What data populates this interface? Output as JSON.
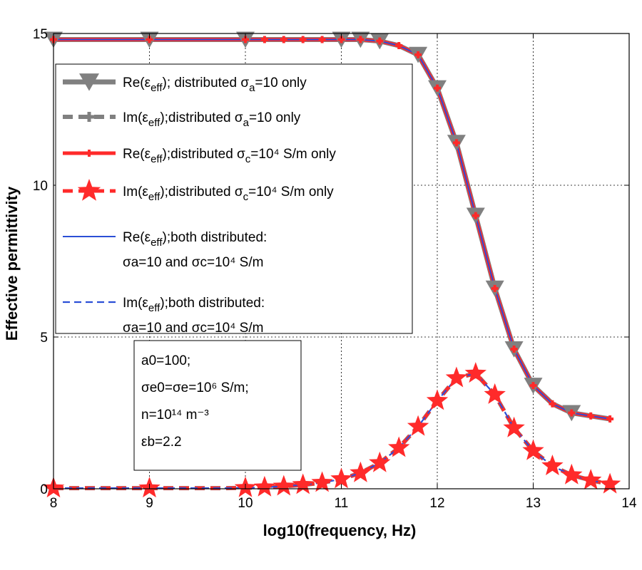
{
  "chart_data": {
    "type": "line",
    "title": "",
    "xlabel": "log10(frequency, Hz)",
    "ylabel": "Effective permittivity",
    "xlim": [
      8,
      14
    ],
    "ylim": [
      0,
      15
    ],
    "xticks": [
      "8",
      "9",
      "10",
      "11",
      "12",
      "13",
      "14"
    ],
    "yticks": [
      "0",
      "5",
      "10",
      "15"
    ],
    "grid": true,
    "legend_position": "upper-left",
    "colors": {
      "gray_series": "#808080",
      "red_series": "#ff2a2a",
      "blue_series": "#2b4fd6",
      "grid": "#000000"
    },
    "x": [
      8.0,
      8.2,
      8.4,
      8.6,
      8.8,
      9.0,
      9.2,
      9.4,
      9.6,
      9.8,
      10.0,
      10.2,
      10.4,
      10.6,
      10.8,
      11.0,
      11.2,
      11.4,
      11.6,
      11.8,
      12.0,
      12.2,
      12.4,
      12.6,
      12.8,
      13.0,
      13.2,
      13.4,
      13.6,
      13.8
    ],
    "series": [
      {
        "name": "Re(εeff); distributed σa=10 only",
        "style": "gray-solid-triangle",
        "values": [
          14.8,
          14.8,
          14.8,
          14.8,
          14.8,
          14.8,
          14.8,
          14.8,
          14.8,
          14.8,
          14.8,
          14.8,
          14.8,
          14.8,
          14.8,
          14.8,
          14.8,
          14.75,
          14.6,
          14.3,
          13.2,
          11.4,
          9.0,
          6.6,
          4.6,
          3.4,
          2.8,
          2.5,
          2.4,
          2.3
        ]
      },
      {
        "name": "Im(εeff);distributed σa=10 only",
        "style": "gray-dashed-plus",
        "values": [
          0.02,
          0.02,
          0.02,
          0.02,
          0.02,
          0.02,
          0.02,
          0.02,
          0.02,
          0.02,
          0.03,
          0.05,
          0.08,
          0.13,
          0.2,
          0.32,
          0.52,
          0.85,
          1.35,
          2.05,
          2.9,
          3.65,
          3.8,
          3.1,
          2.0,
          1.25,
          0.75,
          0.45,
          0.28,
          0.15
        ]
      },
      {
        "name": "Re(εeff);distributed σc=10^4 S/m only",
        "style": "red-solid-plus",
        "values": [
          14.8,
          14.8,
          14.8,
          14.8,
          14.8,
          14.8,
          14.8,
          14.8,
          14.8,
          14.8,
          14.8,
          14.8,
          14.8,
          14.8,
          14.8,
          14.8,
          14.8,
          14.75,
          14.6,
          14.3,
          13.2,
          11.4,
          9.0,
          6.6,
          4.6,
          3.4,
          2.8,
          2.5,
          2.4,
          2.3
        ]
      },
      {
        "name": "Im(εeff);distributed σc=10^4 S/m only",
        "style": "red-dashed-star",
        "values": [
          0.02,
          0.02,
          0.02,
          0.02,
          0.02,
          0.02,
          0.02,
          0.02,
          0.02,
          0.02,
          0.03,
          0.05,
          0.08,
          0.13,
          0.2,
          0.32,
          0.52,
          0.85,
          1.35,
          2.05,
          2.9,
          3.65,
          3.8,
          3.1,
          2.0,
          1.25,
          0.75,
          0.45,
          0.28,
          0.15
        ]
      },
      {
        "name": "Re(εeff);both distributed: σa=10 and σc=10^4 S/m",
        "style": "blue-solid",
        "values": [
          14.8,
          14.8,
          14.8,
          14.8,
          14.8,
          14.8,
          14.8,
          14.8,
          14.8,
          14.8,
          14.8,
          14.8,
          14.8,
          14.8,
          14.8,
          14.8,
          14.8,
          14.75,
          14.6,
          14.3,
          13.2,
          11.4,
          9.0,
          6.6,
          4.6,
          3.4,
          2.8,
          2.5,
          2.4,
          2.3
        ]
      },
      {
        "name": "Im(εeff);both distributed: σa=10 and σc=10^4 S/m",
        "style": "blue-dashed",
        "values": [
          0.02,
          0.02,
          0.02,
          0.02,
          0.02,
          0.02,
          0.02,
          0.02,
          0.02,
          0.02,
          0.03,
          0.05,
          0.08,
          0.13,
          0.2,
          0.32,
          0.52,
          0.85,
          1.35,
          2.05,
          2.9,
          3.65,
          3.8,
          3.1,
          2.0,
          1.25,
          0.75,
          0.45,
          0.28,
          0.15
        ]
      }
    ],
    "markers": {
      "gray_triangle_x": [
        8,
        9,
        10,
        11,
        11.2,
        11.4,
        11.8,
        12,
        12.2,
        12.4,
        12.6,
        12.8,
        13,
        13.4
      ],
      "red_plus_x": [
        8,
        9,
        10,
        10.2,
        10.4,
        10.6,
        10.8,
        11,
        11.2,
        11.4,
        11.6,
        11.8,
        12,
        12.2,
        12.4,
        12.6,
        12.8,
        13,
        13.2,
        13.4,
        13.6,
        13.8
      ],
      "gray_plus_x": [
        12.4,
        12.6
      ],
      "red_star_x": [
        8,
        9,
        10,
        10.2,
        10.4,
        10.6,
        10.8,
        11,
        11.2,
        11.4,
        11.6,
        11.8,
        12,
        12.2,
        12.4,
        12.6,
        12.8,
        13,
        13.2,
        13.4,
        13.6,
        13.8
      ]
    },
    "legend": [
      {
        "prefix": "Re(ε",
        "sub1": "eff",
        "middle": "); distributed σ",
        "sub2": "a",
        "suffix": "=10 only",
        "line2": ""
      },
      {
        "prefix": "Im(ε",
        "sub1": "eff",
        "middle": ");distributed σ",
        "sub2": "a",
        "suffix": "=10 only",
        "line2": ""
      },
      {
        "prefix": "Re(ε",
        "sub1": "eff",
        "middle": ");distributed σ",
        "sub2": "c",
        "suffix": "=10⁴ S/m only",
        "line2": ""
      },
      {
        "prefix": "Im(ε",
        "sub1": "eff",
        "middle": ");distributed σ",
        "sub2": "c",
        "suffix": "=10⁴ S/m only",
        "line2": ""
      },
      {
        "prefix": "Re(ε",
        "sub1": "eff",
        "middle": ");both distributed:",
        "sub2": "",
        "suffix": "",
        "line2": "σa=10 and σc=10⁴ S/m"
      },
      {
        "prefix": "Im(ε",
        "sub1": "eff",
        "middle": ");both distributed:",
        "sub2": "",
        "suffix": "",
        "line2": "σa=10 and σc=10⁴ S/m"
      }
    ],
    "annotation": [
      "a0=100;",
      "σe0=σe=10⁶ S/m;",
      "n=10¹⁴ m⁻³",
      "εb=2.2"
    ]
  }
}
